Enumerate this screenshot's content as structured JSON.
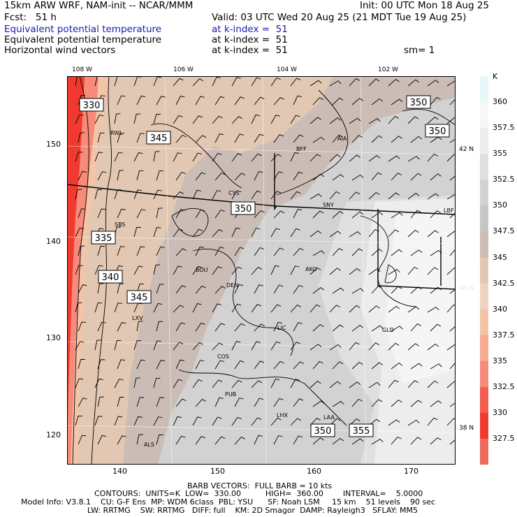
{
  "header": {
    "model": "15km ARW WRF, NAM-init -- NCAR/MMM",
    "init": "Init: 00 UTC Mon 18 Aug 25",
    "fcst": "Fcst:   51 h",
    "valid": "Valid: 03 UTC Wed 20 Aug 25 (21 MDT Tue 19 Aug 25)",
    "fields": [
      {
        "name": "Equivalent potential temperature",
        "level": "at k-index =  51",
        "blue": true
      },
      {
        "name": "Equivalent potential temperature",
        "level": "at k-index =  51",
        "blue": false
      },
      {
        "name": "Horizontal wind vectors",
        "level": "at k-index =  51",
        "blue": false
      }
    ],
    "sm": "sm= 1"
  },
  "lon_labels": [
    "108 W",
    "106 W",
    "104 W",
    "102 W"
  ],
  "lat_labels": [
    "42 N",
    "40 N",
    "38 N"
  ],
  "grid_x_labels": [
    "140",
    "150",
    "160",
    "170"
  ],
  "grid_y_labels": [
    "150",
    "140",
    "130",
    "120"
  ],
  "colorbar": {
    "unit": "K",
    "labels": [
      "360",
      "357.5",
      "355",
      "352.5",
      "350",
      "347.5",
      "345",
      "342.5",
      "340",
      "337.5",
      "335",
      "332.5",
      "330",
      "327.5"
    ],
    "colors": [
      "#e8f8f8",
      "#f7f7f7",
      "#ededed",
      "#e0e0e0",
      "#d2d2d2",
      "#c7c6c6",
      "#cbbdb6",
      "#e2c7b2",
      "#edd4bf",
      "#f3c5a8",
      "#f6ab92",
      "#f78a78",
      "#f55d4e",
      "#f03a30",
      "#ee6a5c"
    ]
  },
  "contour_labels": [
    "330",
    "345",
    "350",
    "350",
    "350",
    "335",
    "340",
    "345",
    "350",
    "355"
  ],
  "stations": [
    "RWL",
    "BFF",
    "AIA",
    "CYS",
    "SNY",
    "LBF",
    "SBS",
    "BOU",
    "AKO",
    "DEN",
    "GLD",
    "LIC",
    "LXV",
    "COS",
    "PUB",
    "LHX",
    "LAA",
    "ALS"
  ],
  "footer": {
    "line1": "BARB VECTORS:  FULL BARB = 10 kts",
    "line2": "CONTOURS:  UNITS=K  LOW=  330.00          HIGH=  360.00        INTERVAL=    5.0000",
    "line3": "Model Info: V3.8.1    CU: G-F Ens  MP: WDM 6class  PBL: YSU      SF: Noah LSM     15 km    51 levels    90 sec",
    "line4": "LW: RRTMG    SW: RRTMG   DIFF: full    KM: 2D Smagor  DAMP: Rayleigh3   SFLAY: MM5"
  }
}
